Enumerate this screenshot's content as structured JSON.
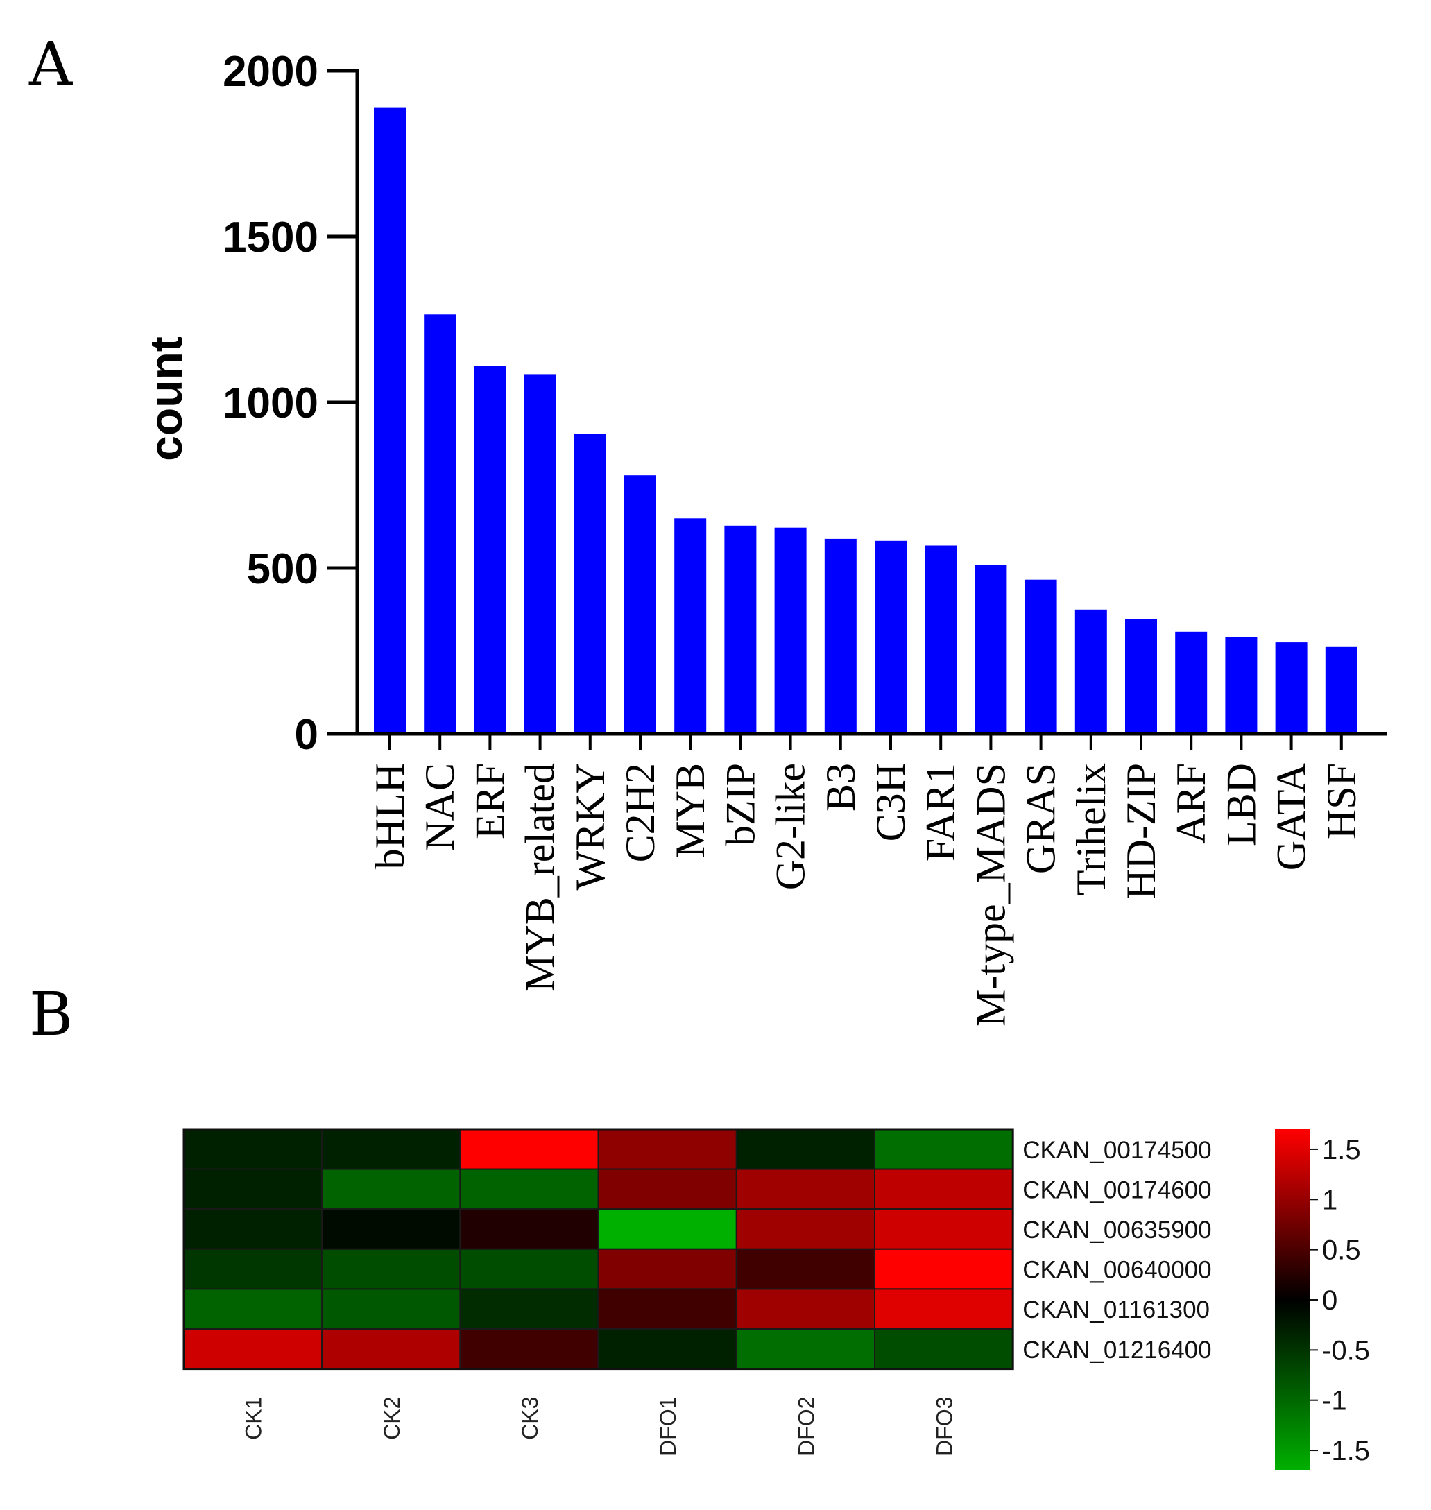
{
  "panels": {
    "a": "A",
    "b": "B"
  },
  "chart_data": [
    {
      "type": "bar",
      "panel": "A",
      "title": "",
      "xlabel": "",
      "ylabel": "count",
      "ylim": [
        0,
        2000
      ],
      "yticks": [
        0,
        500,
        1000,
        1500,
        2000
      ],
      "bar_color": "#0000ff",
      "categories": [
        "bHLH",
        "NAC",
        "ERF",
        "MYB_related",
        "WRKY",
        "C2H2",
        "MYB",
        "bZIP",
        "G2-like",
        "B3",
        "C3H",
        "FAR1",
        "M-type_MADS",
        "GRAS",
        "Trihelix",
        "HD-ZIP",
        "ARF",
        "LBD",
        "GATA",
        "HSF"
      ],
      "values": [
        1890,
        1265,
        1110,
        1085,
        905,
        780,
        650,
        628,
        622,
        588,
        582,
        568,
        510,
        465,
        375,
        347,
        308,
        292,
        276,
        262
      ]
    },
    {
      "type": "heatmap",
      "panel": "B",
      "columns": [
        "CK1",
        "CK2",
        "CK3",
        "DFO1",
        "DFO2",
        "DFO3"
      ],
      "rows": [
        "CKAN_00174500",
        "CKAN_00174600",
        "CKAN_00635900",
        "CKAN_00640000",
        "CKAN_01161300",
        "CKAN_01216400"
      ],
      "values": [
        [
          -0.3,
          -0.3,
          1.6,
          0.9,
          -0.3,
          -1.0
        ],
        [
          -0.3,
          -0.9,
          -0.9,
          0.8,
          1.0,
          1.2
        ],
        [
          -0.3,
          -0.1,
          0.2,
          -1.6,
          1.0,
          1.3
        ],
        [
          -0.5,
          -0.7,
          -0.7,
          0.8,
          0.4,
          1.7
        ],
        [
          -0.9,
          -0.8,
          -0.4,
          0.4,
          1.0,
          1.4
        ],
        [
          1.3,
          1.1,
          0.4,
          -0.3,
          -1.0,
          -0.7
        ]
      ],
      "color_min": "#00b000",
      "color_mid": "#000000",
      "color_max": "#ff0000",
      "colorbar_range": [
        -1.7,
        1.7
      ],
      "colorbar_ticks": [
        "1.5",
        "1",
        "0.5",
        "0",
        "-0.5",
        "-1",
        "-1.5"
      ]
    }
  ]
}
